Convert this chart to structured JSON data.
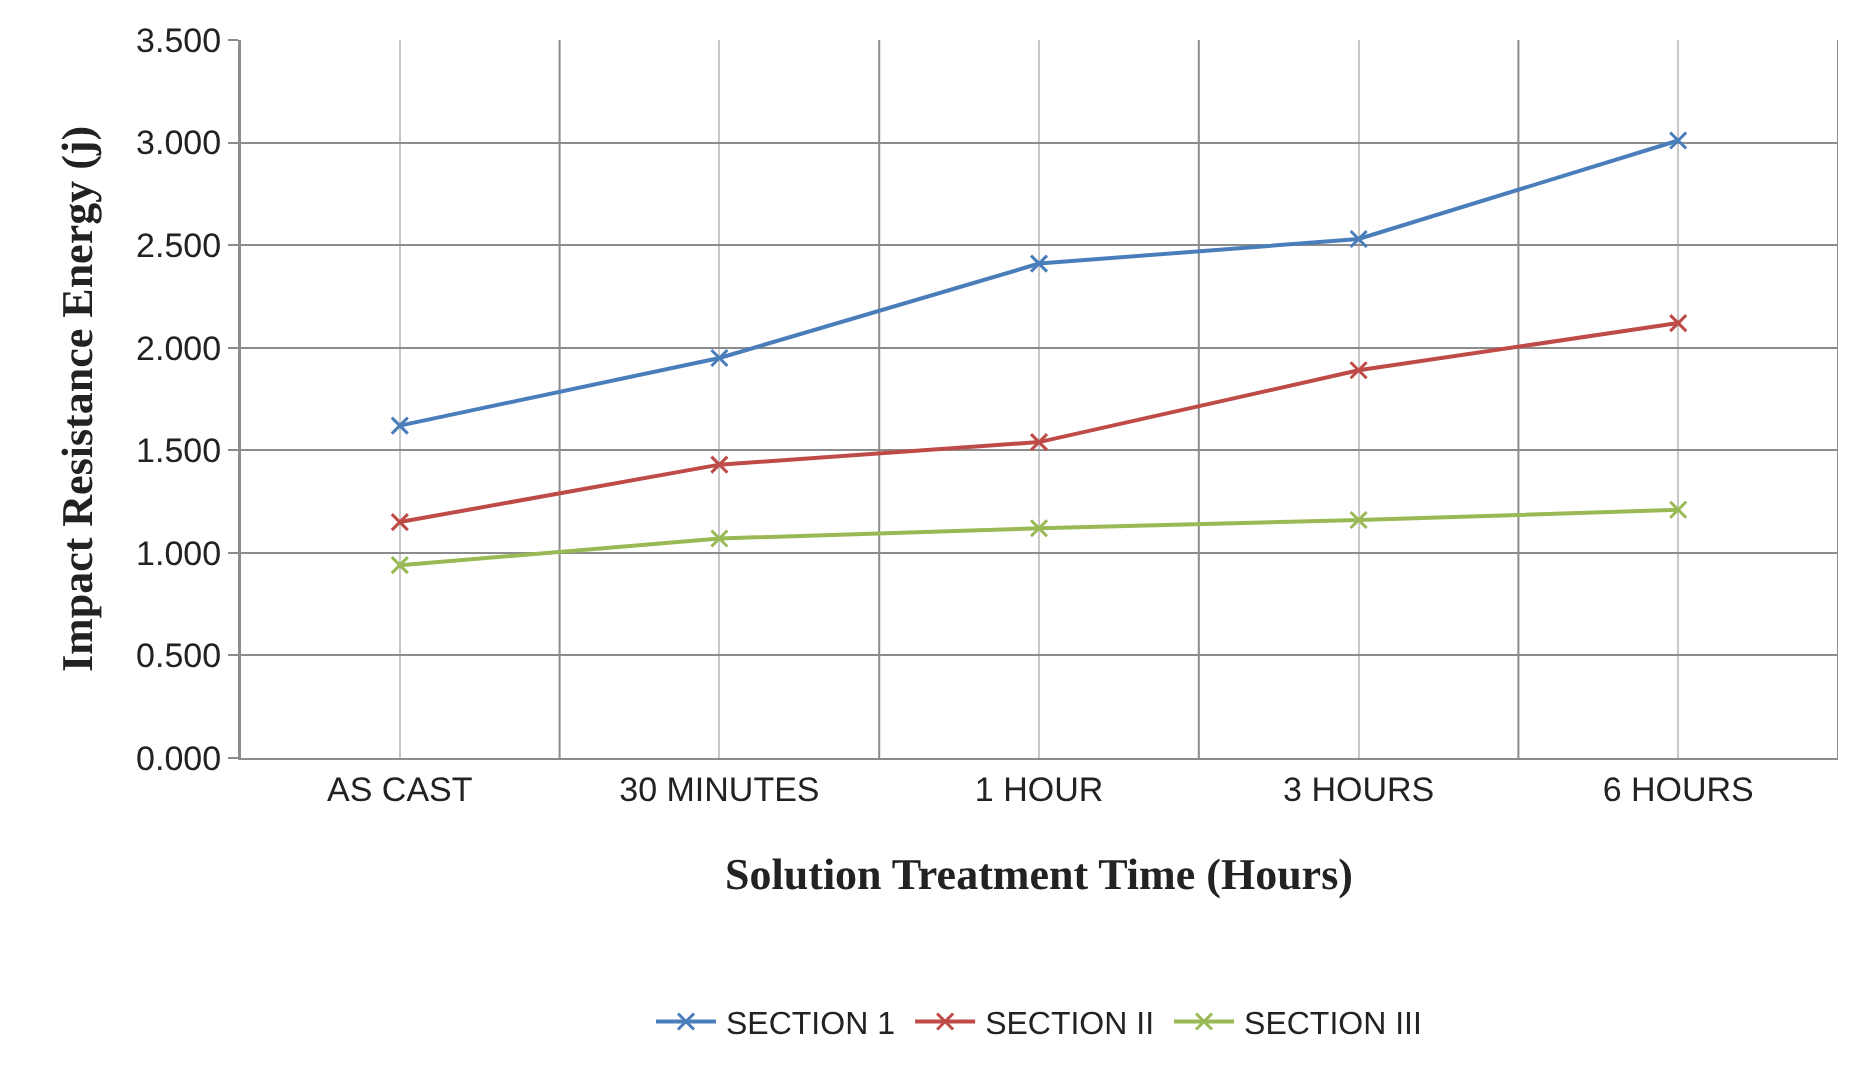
{
  "chart_data": {
    "type": "line",
    "xlabel": "Solution Treatment Time (Hours)",
    "ylabel": "Impact Resistance Energy (j)",
    "categories": [
      "AS CAST",
      "30 MINUTES",
      "1 HOUR",
      "3 HOURS",
      "6 HOURS"
    ],
    "series": [
      {
        "name": "SECTION 1",
        "color": "#4a7ebb",
        "values": [
          1.62,
          1.95,
          2.41,
          2.53,
          3.01
        ]
      },
      {
        "name": "SECTION II",
        "color": "#be4b48",
        "values": [
          1.15,
          1.43,
          1.54,
          1.89,
          2.12
        ]
      },
      {
        "name": "SECTION III",
        "color": "#98b954",
        "values": [
          0.94,
          1.07,
          1.12,
          1.16,
          1.21
        ]
      }
    ],
    "ylim": [
      0,
      3.5
    ],
    "yticks": [
      {
        "value": 0,
        "label": "0.000"
      },
      {
        "value": 0.5,
        "label": "0.500"
      },
      {
        "value": 1,
        "label": "1.000"
      },
      {
        "value": 1.5,
        "label": "1.500"
      },
      {
        "value": 2,
        "label": "2.000"
      },
      {
        "value": 2.5,
        "label": "2.500"
      },
      {
        "value": 3,
        "label": "3.000"
      },
      {
        "value": 3.5,
        "label": "3.500"
      }
    ],
    "grid": true,
    "legend": "bottom",
    "marker": "cross",
    "line_style": "solid"
  }
}
